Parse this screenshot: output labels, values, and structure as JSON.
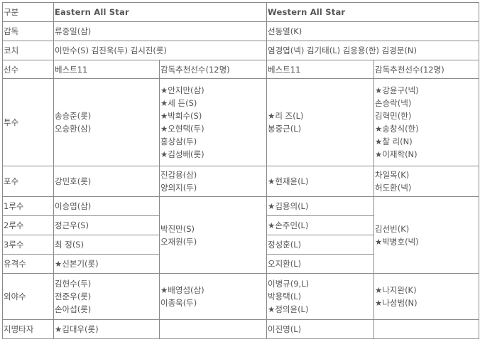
{
  "header": {
    "label": "구분",
    "east": "Eastern All Star",
    "west": "Western All Star"
  },
  "manager": {
    "label": "감독",
    "east": "류중일(삼)",
    "west": "선동열(K)"
  },
  "coach": {
    "label": "코치",
    "east": "이만수(S) 김진욱(두) 김시진(롯)",
    "west": "염경엽(넥) 김기태(L) 김응용(한) 김경문(N)"
  },
  "players": {
    "label": "선수",
    "east_best": "베스트11",
    "east_rec": "감독추천선수(12명)",
    "west_best": "베스트11",
    "west_rec": "감독추천선수(12명)"
  },
  "pitcher": {
    "label": "투수",
    "east_best": [
      "송승준(롯)",
      "오승환(삼)"
    ],
    "east_rec": [
      "★안지만(삼)",
      "★세  든(S)",
      "★박희수(S)",
      "★오현택(두)",
      "홍상삼(두)",
      "★김성배(롯)"
    ],
    "west_best": [
      "★리  즈(L)",
      "봉중근(L)"
    ],
    "west_rec": [
      "★강윤구(넥)",
      "손승락(넥)",
      "김혁민(한)",
      "★송창식(한)",
      "★찰  리(N)",
      "★이재학(N)"
    ]
  },
  "catcher": {
    "label": "포수",
    "east_best": "강민호(롯)",
    "east_rec": [
      "진갑용(삼)",
      "양의지(두)"
    ],
    "west_best": "★현재윤(L)",
    "west_rec": [
      "차일목(K)",
      "허도환(넥)"
    ]
  },
  "infield": {
    "first": {
      "label": "1루수",
      "east_best": "이승엽(삼)",
      "west_best": "★김용의(L)"
    },
    "second": {
      "label": "2루수",
      "east_best": "정근우(S)",
      "west_best": "★손주인(L)"
    },
    "third": {
      "label": "3루수",
      "east_best": "최  정(S)",
      "west_best": "정성훈(L)"
    },
    "short": {
      "label": "유격수",
      "east_best": "★신본기(롯)",
      "west_best": "오지환(L)"
    },
    "east_rec": [
      "박진만(S)",
      "오재원(두)"
    ],
    "west_rec": [
      "김선빈(K)",
      "★박병호(넥)"
    ]
  },
  "outfield": {
    "label": "외야수",
    "east_best": [
      "김현수(두)",
      "전준우(롯)",
      "손아섭(롯)"
    ],
    "east_rec": [
      "★배영섭(삼)",
      "이종욱(두)"
    ],
    "west_best": [
      "이병규(9,L)",
      "박용택(L)",
      "★정의윤(L)"
    ],
    "west_rec": [
      "★나지완(K)",
      "★나성범(N)"
    ]
  },
  "dh": {
    "label": "지명타자",
    "east_best": "★김대우(롯)",
    "east_rec": "",
    "west_best": "이진영(L)",
    "west_rec": ""
  }
}
